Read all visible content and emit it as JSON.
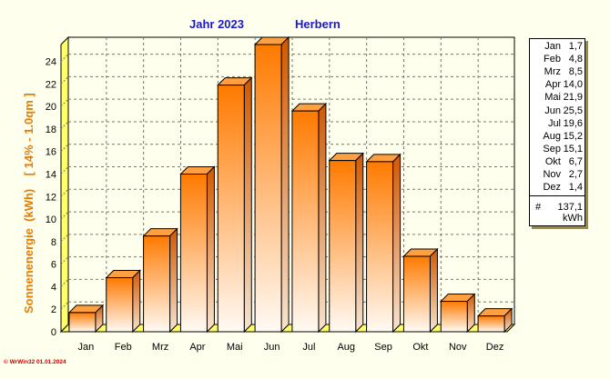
{
  "chart_data": {
    "type": "bar",
    "title": "Jahr  2023",
    "location": "Herbern",
    "ylabel": "Sonnenenergie  (kWh)    [ 14% - 1.0qm ]",
    "xlabel": "",
    "categories": [
      "Jan",
      "Feb",
      "Mrz",
      "Apr",
      "Mai",
      "Jun",
      "Jul",
      "Aug",
      "Sep",
      "Okt",
      "Nov",
      "Dez"
    ],
    "values": [
      1.7,
      4.8,
      8.5,
      14.0,
      21.9,
      25.5,
      19.6,
      15.2,
      15.1,
      6.7,
      2.7,
      1.4
    ],
    "value_labels": [
      "1,7",
      "4,8",
      "8,5",
      "14,0",
      "21,9",
      "25,5",
      "19,6",
      "15,2",
      "15,1",
      "6,7",
      "2,7",
      "1,4"
    ],
    "ylim": [
      0,
      25.5
    ],
    "yticks": [
      0,
      2,
      4,
      6,
      8,
      10,
      12,
      14,
      16,
      18,
      20,
      22,
      24
    ],
    "grid": true,
    "legend_position": "right",
    "total_hash": "#",
    "total": "137,1",
    "total_unit": "kWh",
    "bar_color": "#ff7f00",
    "title_color": "#1a1acc",
    "ylabel_color": "#e87c00"
  },
  "credit": "© WrWin32  01.01.2024"
}
